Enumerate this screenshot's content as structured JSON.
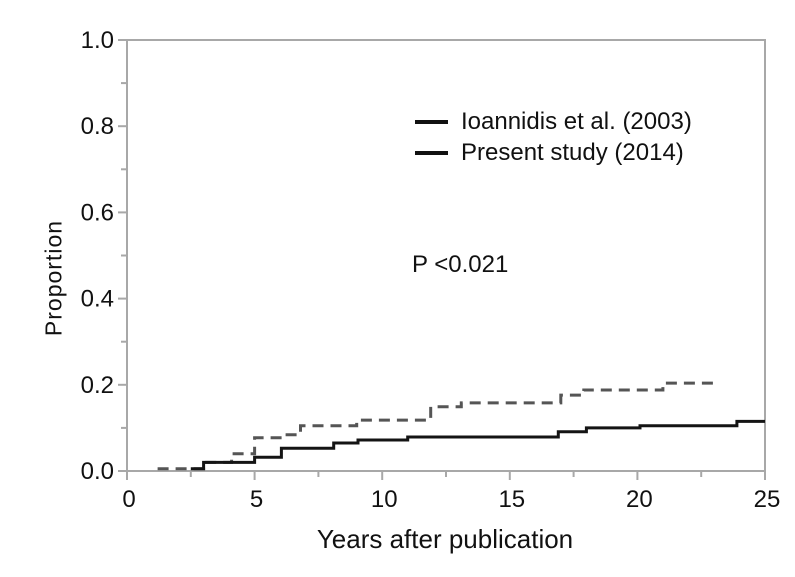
{
  "legend": {
    "items": [
      {
        "label": "Ioannidis et al. (2003)",
        "swatch": "line-swatch"
      },
      {
        "label": "Present study (2014)",
        "swatch": "line-swatch"
      }
    ]
  },
  "annotation": {
    "p_value": "P <0.021"
  },
  "colors": {
    "axis": "#a8a8a8",
    "tick_label": "#111111",
    "series_dashed": "#555555",
    "series_solid": "#141414",
    "background": "#ffffff"
  },
  "chart_data": {
    "type": "line",
    "subtype": "step-cumulative-incidence",
    "title": "",
    "xlabel": "Years after publication",
    "ylabel": "Proportion",
    "xlim": [
      0,
      25
    ],
    "ylim": [
      0.0,
      1.0
    ],
    "grid": false,
    "legend_position": "upper center-right inside",
    "annotation": "P <0.021",
    "x_major_ticks": [
      0,
      5,
      10,
      15,
      20,
      25
    ],
    "x_major_tick_labels": [
      "0",
      "5",
      "10",
      "15",
      "20",
      "25"
    ],
    "x_minor_ticks": [
      2.5,
      7.5,
      12.5,
      17.5,
      22.5
    ],
    "y_major_ticks": [
      0.0,
      0.2,
      0.4,
      0.6,
      0.8,
      1.0
    ],
    "y_major_tick_labels": [
      "0.0",
      "0.2",
      "0.4",
      "0.6",
      "0.8",
      "1.0"
    ],
    "y_minor_ticks": [
      0.1,
      0.3,
      0.5,
      0.7,
      0.9
    ],
    "series": [
      {
        "name": "Ioannidis et al. (2003)",
        "line_style": "dashed",
        "color": "#555555",
        "points": [
          [
            1.2,
            0.005
          ],
          [
            3.0,
            0.02
          ],
          [
            4.1,
            0.04
          ],
          [
            5.0,
            0.077
          ],
          [
            6.1,
            0.084
          ],
          [
            6.8,
            0.105
          ],
          [
            9.0,
            0.118
          ],
          [
            11.9,
            0.149
          ],
          [
            13.1,
            0.158
          ],
          [
            17.0,
            0.176
          ],
          [
            17.9,
            0.188
          ],
          [
            21.0,
            0.204
          ],
          [
            23.0,
            0.204
          ]
        ]
      },
      {
        "name": "Present study (2014)",
        "line_style": "solid",
        "color": "#141414",
        "points": [
          [
            2.5,
            0.005
          ],
          [
            3.0,
            0.02
          ],
          [
            5.0,
            0.032
          ],
          [
            6.05,
            0.053
          ],
          [
            8.1,
            0.065
          ],
          [
            9.05,
            0.072
          ],
          [
            11.0,
            0.079
          ],
          [
            16.9,
            0.091
          ],
          [
            18.0,
            0.1
          ],
          [
            20.1,
            0.105
          ],
          [
            23.9,
            0.115
          ],
          [
            25.0,
            0.115
          ]
        ]
      }
    ]
  }
}
